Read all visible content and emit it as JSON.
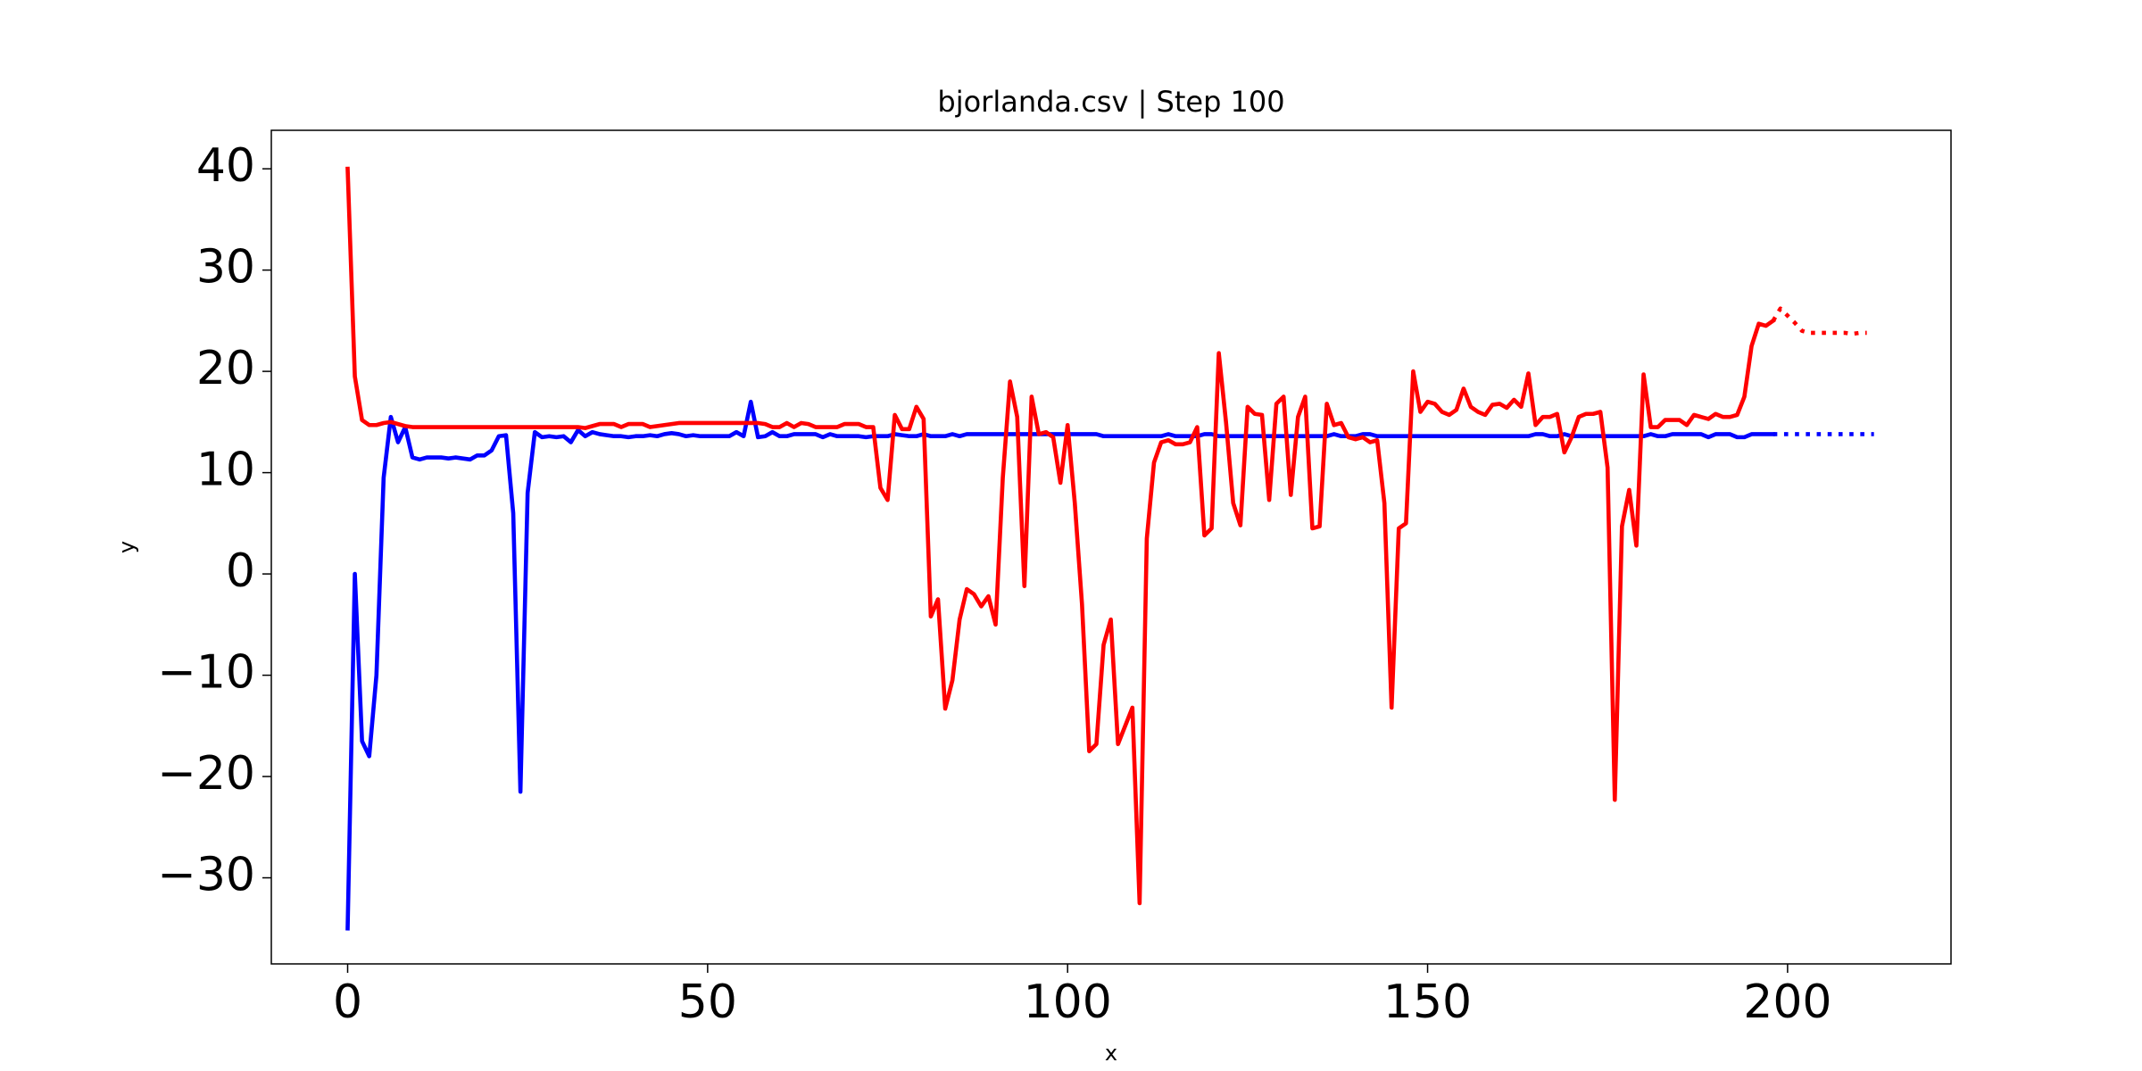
{
  "chart_data": {
    "type": "line",
    "title": "bjorlanda.csv | Step 100",
    "xlabel": "x",
    "ylabel": "y",
    "xlim": [
      -10.6,
      222.7
    ],
    "ylim": [
      -38.5,
      43.8
    ],
    "xticks": [
      0,
      50,
      100,
      150,
      200
    ],
    "yticks": [
      {
        "value": -30,
        "label": "−30"
      },
      {
        "value": -20,
        "label": "−20"
      },
      {
        "value": -10,
        "label": "−10"
      },
      0,
      10,
      20,
      30,
      40
    ],
    "grid": false,
    "x": [
      0,
      1,
      2,
      3,
      4,
      5,
      6,
      7,
      8,
      9,
      10,
      11,
      12,
      13,
      14,
      15,
      16,
      17,
      18,
      19,
      20,
      21,
      22,
      23,
      24,
      25,
      26,
      27,
      28,
      29,
      30,
      31,
      32,
      33,
      34,
      35,
      36,
      37,
      38,
      39,
      40,
      41,
      42,
      43,
      44,
      45,
      46,
      47,
      48,
      49,
      50,
      51,
      52,
      53,
      54,
      55,
      56,
      57,
      58,
      59,
      60,
      61,
      62,
      63,
      64,
      65,
      66,
      67,
      68,
      69,
      70,
      71,
      72,
      73,
      74,
      75,
      76,
      77,
      78,
      79,
      80,
      81,
      82,
      83,
      84,
      85,
      86,
      87,
      88,
      89,
      90,
      91,
      92,
      93,
      94,
      95,
      96,
      97,
      98,
      99,
      100,
      101,
      102,
      103,
      104,
      105,
      106,
      107,
      108,
      109,
      110,
      111,
      112,
      113,
      114,
      115,
      116,
      117,
      118,
      119,
      120,
      121,
      122,
      123,
      124,
      125,
      126,
      127,
      128,
      129,
      130,
      131,
      132,
      133,
      134,
      135,
      136,
      137,
      138,
      139,
      140,
      141,
      142,
      143,
      144,
      145,
      146,
      147,
      148,
      149,
      150,
      151,
      152,
      153,
      154,
      155,
      156,
      157,
      158,
      159,
      160,
      161,
      162,
      163,
      164,
      165,
      166,
      167,
      168,
      169,
      170,
      171,
      172,
      173,
      174,
      175,
      176,
      177,
      178,
      179,
      180,
      181,
      182,
      183,
      184,
      185,
      186,
      187,
      188,
      189,
      190,
      191,
      192,
      193,
      194,
      195,
      196,
      197,
      198
    ],
    "series": [
      {
        "color": "#0000ff",
        "linestyle": "solid",
        "values": [
          -35,
          0,
          -16.5,
          -18,
          -10,
          9.5,
          15.5,
          13,
          14.5,
          11.5,
          11.3,
          11.5,
          11.5,
          11.5,
          11.4,
          11.5,
          11.4,
          11.3,
          11.7,
          11.7,
          12.2,
          13.6,
          13.7,
          6,
          -21.5,
          8,
          14,
          13.5,
          13.6,
          13.5,
          13.6,
          13,
          14.2,
          13.6,
          14,
          13.8,
          13.7,
          13.6,
          13.6,
          13.5,
          13.6,
          13.6,
          13.7,
          13.6,
          13.8,
          13.9,
          13.8,
          13.6,
          13.7,
          13.6,
          13.6,
          13.6,
          13.6,
          13.6,
          14,
          13.6,
          17,
          13.5,
          13.6,
          14,
          13.6,
          13.6,
          13.8,
          13.8,
          13.8,
          13.8,
          13.5,
          13.8,
          13.6,
          13.6,
          13.6,
          13.6,
          13.5,
          13.6,
          13.6,
          13.6,
          13.8,
          13.7,
          13.6,
          13.6,
          13.8,
          13.6,
          13.6,
          13.6,
          13.8,
          13.6,
          13.8,
          13.8,
          13.8,
          13.8,
          13.8,
          13.8,
          13.8,
          13.8,
          13.8,
          13.8,
          13.8,
          13.8,
          13.8,
          13.8,
          13.8,
          13.8,
          13.8,
          13.8,
          13.8,
          13.6,
          13.6,
          13.6,
          13.6,
          13.6,
          13.6,
          13.6,
          13.6,
          13.6,
          13.8,
          13.6,
          13.6,
          13.6,
          13.6,
          13.8,
          13.8,
          13.6,
          13.6,
          13.6,
          13.6,
          13.6,
          13.6,
          13.6,
          13.6,
          13.6,
          13.6,
          13.6,
          13.6,
          13.6,
          13.6,
          13.6,
          13.6,
          13.8,
          13.6,
          13.6,
          13.6,
          13.8,
          13.8,
          13.6,
          13.6,
          13.6,
          13.6,
          13.6,
          13.6,
          13.6,
          13.6,
          13.6,
          13.6,
          13.6,
          13.6,
          13.6,
          13.6,
          13.6,
          13.6,
          13.6,
          13.6,
          13.6,
          13.6,
          13.6,
          13.6,
          13.8,
          13.8,
          13.6,
          13.6,
          13.8,
          13.6,
          13.6,
          13.6,
          13.6,
          13.6,
          13.6,
          13.6,
          13.6,
          13.6,
          13.6,
          13.6,
          13.8,
          13.6,
          13.6,
          13.8,
          13.8,
          13.8,
          13.8,
          13.8,
          13.5,
          13.8,
          13.8,
          13.8,
          13.5,
          13.5,
          13.8,
          13.8,
          13.8,
          13.8
        ]
      },
      {
        "color": "#ff0000",
        "linestyle": "solid",
        "values": [
          40,
          19.5,
          15.2,
          14.7,
          14.7,
          14.9,
          15,
          14.8,
          14.6,
          14.5,
          14.5,
          14.5,
          14.5,
          14.5,
          14.5,
          14.5,
          14.5,
          14.5,
          14.5,
          14.5,
          14.5,
          14.5,
          14.5,
          14.5,
          14.5,
          14.5,
          14.5,
          14.5,
          14.5,
          14.5,
          14.5,
          14.5,
          14.5,
          14.4,
          14.6,
          14.8,
          14.8,
          14.8,
          14.5,
          14.8,
          14.8,
          14.8,
          14.5,
          14.6,
          14.7,
          14.8,
          14.9,
          14.9,
          14.9,
          14.9,
          14.9,
          14.9,
          14.9,
          14.9,
          14.9,
          14.9,
          14.9,
          14.9,
          14.8,
          14.5,
          14.5,
          14.9,
          14.5,
          14.9,
          14.8,
          14.5,
          14.5,
          14.5,
          14.5,
          14.8,
          14.8,
          14.8,
          14.5,
          14.5,
          8.5,
          7.3,
          15.7,
          14.3,
          14.3,
          16.5,
          15.3,
          -4.2,
          -2.5,
          -13.3,
          -10.5,
          -4.5,
          -1.5,
          -2,
          -3.2,
          -2.2,
          -5,
          9.5,
          19,
          15.5,
          -1.2,
          17.5,
          13.8,
          14,
          13.5,
          9,
          14.7,
          7,
          -3,
          -17.5,
          -16.8,
          -7,
          -4.5,
          -16.8,
          -15,
          -13.2,
          -32.5,
          3.5,
          11,
          13,
          13.2,
          12.8,
          12.8,
          13,
          14.5,
          3.8,
          4.5,
          21.8,
          15,
          7,
          4.8,
          16.5,
          15.8,
          15.7,
          7.3,
          16.8,
          17.5,
          7.8,
          15.5,
          17.5,
          4.5,
          4.7,
          16.8,
          14.7,
          14.9,
          13.5,
          13.3,
          13.5,
          13,
          13.2,
          7,
          -13.2,
          4.5,
          5,
          20,
          16,
          17,
          16.8,
          16,
          15.7,
          16.2,
          18.3,
          16.5,
          16,
          15.7,
          16.7,
          16.8,
          16.4,
          17.2,
          16.5,
          19.8,
          14.7,
          15.5,
          15.5,
          15.8,
          12,
          13.5,
          15.5,
          15.8,
          15.8,
          16,
          10.5,
          -22.3,
          4.7,
          8.3,
          2.8,
          19.7,
          14.5,
          14.5,
          15.2,
          15.2,
          15.2,
          14.7,
          15.7,
          15.5,
          15.3,
          15.8,
          15.5,
          15.5,
          15.7,
          17.5,
          22.5,
          24.7,
          24.5,
          25
        ]
      },
      {
        "color": "#0000ff",
        "linestyle": "dotted",
        "x": [
          198,
          199,
          200,
          201,
          202,
          203,
          204,
          205,
          206,
          207,
          208,
          209,
          210,
          211,
          212
        ],
        "values": [
          13.8,
          13.8,
          13.8,
          13.8,
          13.8,
          13.8,
          13.8,
          13.8,
          13.8,
          13.8,
          13.8,
          13.8,
          13.8,
          13.8,
          13.8
        ]
      },
      {
        "color": "#ff0000",
        "linestyle": "dotted",
        "x": [
          198,
          199,
          200,
          201,
          202,
          203,
          204,
          205,
          206,
          207,
          208,
          209,
          210,
          211
        ],
        "values": [
          25,
          26.2,
          25.5,
          24.8,
          24,
          23.8,
          23.8,
          23.8,
          23.8,
          23.8,
          23.8,
          23.7,
          23.8,
          23.8
        ]
      }
    ]
  }
}
